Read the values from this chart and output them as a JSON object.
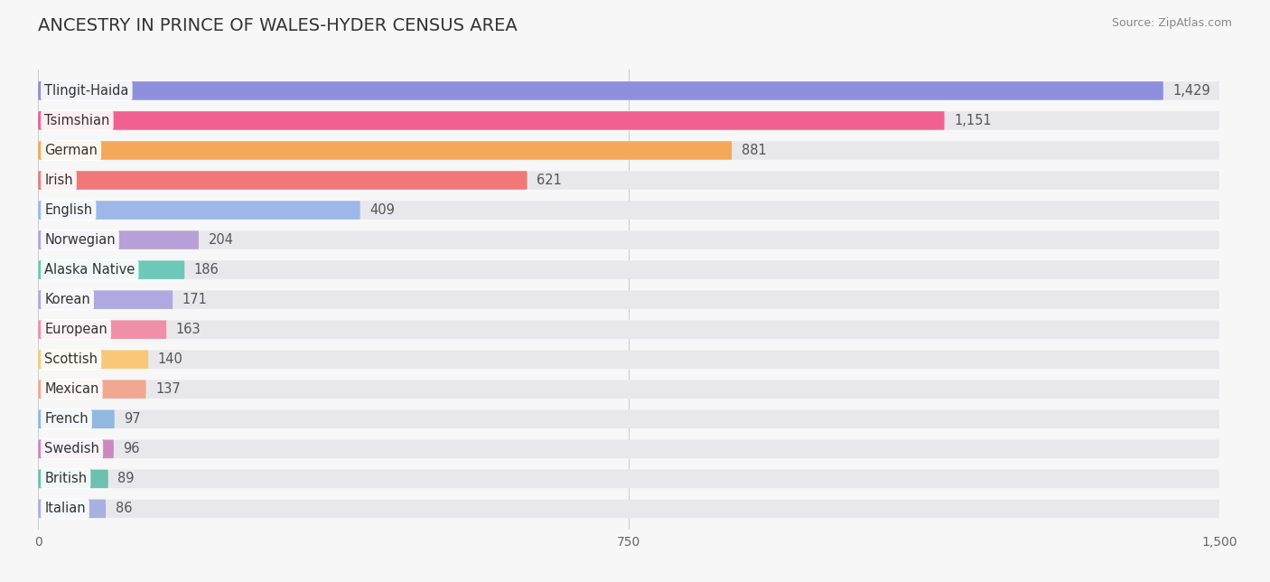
{
  "title": "ANCESTRY IN PRINCE OF WALES-HYDER CENSUS AREA",
  "source": "Source: ZipAtlas.com",
  "categories": [
    "Tlingit-Haida",
    "Tsimshian",
    "German",
    "Irish",
    "English",
    "Norwegian",
    "Alaska Native",
    "Korean",
    "European",
    "Scottish",
    "Mexican",
    "French",
    "Swedish",
    "British",
    "Italian"
  ],
  "values": [
    1429,
    1151,
    881,
    621,
    409,
    204,
    186,
    171,
    163,
    140,
    137,
    97,
    96,
    89,
    86
  ],
  "colors": [
    "#8f8fdd",
    "#f06090",
    "#f5a85a",
    "#f07878",
    "#9db8e8",
    "#b8a0d8",
    "#6dc8b8",
    "#b0a8e0",
    "#f090a8",
    "#f8c878",
    "#f0a890",
    "#90b8e0",
    "#cc88c0",
    "#6dc0b0",
    "#a8b0e0"
  ],
  "xlim": [
    0,
    1500
  ],
  "xticks": [
    0,
    750,
    1500
  ],
  "background_color": "#f7f7f7",
  "bar_background": "#e8e8ec",
  "title_fontsize": 14,
  "label_fontsize": 10.5,
  "value_fontsize": 10.5,
  "bar_height": 0.62
}
